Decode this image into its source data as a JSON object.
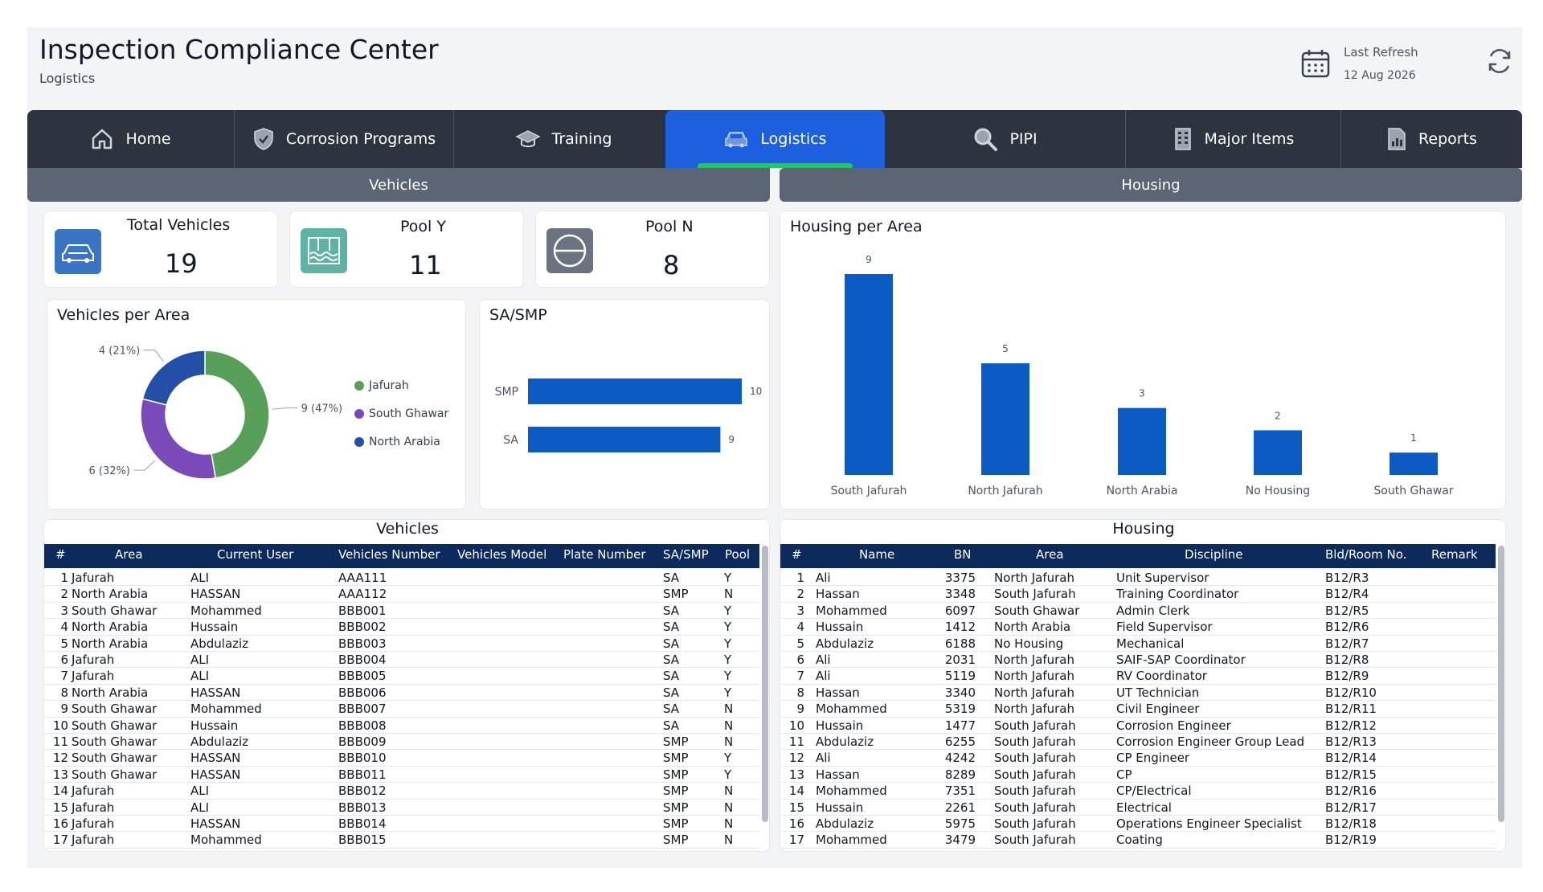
{
  "header": {
    "title": "Inspection Compliance Center",
    "subtitle": "Logistics",
    "refresh_label": "Last Refresh",
    "refresh_date": "12 Aug 2026"
  },
  "nav": {
    "tabs": [
      {
        "label": "Home",
        "icon": "home-icon"
      },
      {
        "label": "Corrosion Programs",
        "icon": "shield-icon"
      },
      {
        "label": "Training",
        "icon": "graduation-cap-icon"
      },
      {
        "label": "Logistics",
        "icon": "car-icon",
        "active": true
      },
      {
        "label": "PIPI",
        "icon": "magnifier-icon"
      },
      {
        "label": "Major Items",
        "icon": "building-icon"
      },
      {
        "label": "Reports",
        "icon": "report-icon"
      }
    ]
  },
  "sections": {
    "vehicles": "Vehicles",
    "housing": "Housing"
  },
  "kpis": [
    {
      "label": "Total Vehicles",
      "value": "19",
      "icon": "car-icon",
      "color": "#3a74c4"
    },
    {
      "label": "Pool Y",
      "value": "11",
      "icon": "pool-icon",
      "color": "#5fb3a2"
    },
    {
      "label": "Pool N",
      "value": "8",
      "icon": "no-entry-icon",
      "color": "#6b7280"
    }
  ],
  "vehicles_per_area": {
    "title": "Vehicles per Area",
    "chart_data": {
      "type": "pie",
      "categories": [
        "Jafurah",
        "South Ghawar",
        "North Arabia"
      ],
      "values": [
        9,
        6,
        4
      ],
      "data_labels": [
        "9 (47%)",
        "6 (32%)",
        "4 (21%)"
      ],
      "colors": [
        "#58a05a",
        "#7a4bb8",
        "#2350a6"
      ],
      "donut": true,
      "legend": "right"
    }
  },
  "sa_smp": {
    "title": "SA/SMP",
    "chart_data": {
      "type": "bar",
      "orientation": "horizontal",
      "categories": [
        "SMP",
        "SA"
      ],
      "values": [
        10,
        9
      ],
      "color": "#0c5bc4"
    }
  },
  "housing_per_area": {
    "title": "Housing per Area",
    "chart_data": {
      "type": "bar",
      "categories": [
        "South Jafurah",
        "North Jafurah",
        "North Arabia",
        "No Housing",
        "South Ghawar"
      ],
      "values": [
        9,
        5,
        3,
        2,
        1
      ],
      "color": "#0c5bc4"
    }
  },
  "vehicles_table": {
    "title": "Vehicles",
    "columns": [
      "#",
      "Area",
      "Current User",
      "Vehicles Number",
      "Vehicles Model",
      "Plate Number",
      "SA/SMP",
      "Pool"
    ],
    "rows": [
      [
        "1",
        "Jafurah",
        "ALI",
        "AAA111",
        "",
        "",
        "SA",
        "Y"
      ],
      [
        "2",
        "North Arabia",
        "HASSAN",
        "AAA112",
        "",
        "",
        "SMP",
        "N"
      ],
      [
        "3",
        "South Ghawar",
        "Mohammed",
        "BBB001",
        "",
        "",
        "SA",
        "Y"
      ],
      [
        "4",
        "North Arabia",
        "Hussain",
        "BBB002",
        "",
        "",
        "SA",
        "Y"
      ],
      [
        "5",
        "North Arabia",
        "Abdulaziz",
        "BBB003",
        "",
        "",
        "SA",
        "Y"
      ],
      [
        "6",
        "Jafurah",
        "ALI",
        "BBB004",
        "",
        "",
        "SA",
        "Y"
      ],
      [
        "7",
        "Jafurah",
        "ALI",
        "BBB005",
        "",
        "",
        "SA",
        "Y"
      ],
      [
        "8",
        "North Arabia",
        "HASSAN",
        "BBB006",
        "",
        "",
        "SA",
        "Y"
      ],
      [
        "9",
        "South Ghawar",
        "Mohammed",
        "BBB007",
        "",
        "",
        "SA",
        "N"
      ],
      [
        "10",
        "South Ghawar",
        "Hussain",
        "BBB008",
        "",
        "",
        "SA",
        "N"
      ],
      [
        "11",
        "South Ghawar",
        "Abdulaziz",
        "BBB009",
        "",
        "",
        "SMP",
        "N"
      ],
      [
        "12",
        "South Ghawar",
        "HASSAN",
        "BBB010",
        "",
        "",
        "SMP",
        "Y"
      ],
      [
        "13",
        "South Ghawar",
        "HASSAN",
        "BBB011",
        "",
        "",
        "SMP",
        "Y"
      ],
      [
        "14",
        "Jafurah",
        "ALI",
        "BBB012",
        "",
        "",
        "SMP",
        "N"
      ],
      [
        "15",
        "Jafurah",
        "ALI",
        "BBB013",
        "",
        "",
        "SMP",
        "N"
      ],
      [
        "16",
        "Jafurah",
        "HASSAN",
        "BBB014",
        "",
        "",
        "SMP",
        "N"
      ],
      [
        "17",
        "Jafurah",
        "Mohammed",
        "BBB015",
        "",
        "",
        "SMP",
        "N"
      ]
    ]
  },
  "housing_table": {
    "title": "Housing",
    "columns": [
      "#",
      "Name",
      "BN",
      "Area",
      "Discipline",
      "Bld/Room No.",
      "Remark"
    ],
    "rows": [
      [
        "1",
        "Ali",
        "3375",
        "North Jafurah",
        "Unit Supervisor",
        "B12/R3",
        ""
      ],
      [
        "2",
        "Hassan",
        "3348",
        "South Jafurah",
        "Training Coordinator",
        "B12/R4",
        ""
      ],
      [
        "3",
        "Mohammed",
        "6097",
        "South Ghawar",
        "Admin Clerk",
        "B12/R5",
        ""
      ],
      [
        "4",
        "Hussain",
        "1412",
        "North Arabia",
        "Field Supervisor",
        "B12/R6",
        ""
      ],
      [
        "5",
        "Abdulaziz",
        "6188",
        "No Housing",
        "Mechanical",
        "B12/R7",
        ""
      ],
      [
        "6",
        "Ali",
        "2031",
        "North Jafurah",
        "SAIF-SAP Coordinator",
        "B12/R8",
        ""
      ],
      [
        "7",
        "Ali",
        "5119",
        "North Jafurah",
        "RV Coordinator",
        "B12/R9",
        ""
      ],
      [
        "8",
        "Hassan",
        "3340",
        "North Jafurah",
        "UT Technician",
        "B12/R10",
        ""
      ],
      [
        "9",
        "Mohammed",
        "5319",
        "North Jafurah",
        "Civil Engineer",
        "B12/R11",
        ""
      ],
      [
        "10",
        "Hussain",
        "1477",
        "South Jafurah",
        "Corrosion Engineer",
        "B12/R12",
        ""
      ],
      [
        "11",
        "Abdulaziz",
        "6255",
        "South Jafurah",
        "Corrosion Engineer Group Lead",
        "B12/R13",
        ""
      ],
      [
        "12",
        "Ali",
        "4242",
        "South Jafurah",
        "CP Engineer",
        "B12/R14",
        ""
      ],
      [
        "13",
        "Hassan",
        "8289",
        "South Jafurah",
        "CP",
        "B12/R15",
        ""
      ],
      [
        "14",
        "Mohammed",
        "7351",
        "South Jafurah",
        "CP/Electrical",
        "B12/R16",
        ""
      ],
      [
        "15",
        "Hussain",
        "2261",
        "South Jafurah",
        "Electrical",
        "B12/R17",
        ""
      ],
      [
        "16",
        "Abdulaziz",
        "5975",
        "South Jafurah",
        "Operations Engineer Specialist",
        "B12/R18",
        ""
      ],
      [
        "17",
        "Mohammed",
        "3479",
        "South Jafurah",
        "Coating",
        "B12/R19",
        ""
      ]
    ]
  }
}
